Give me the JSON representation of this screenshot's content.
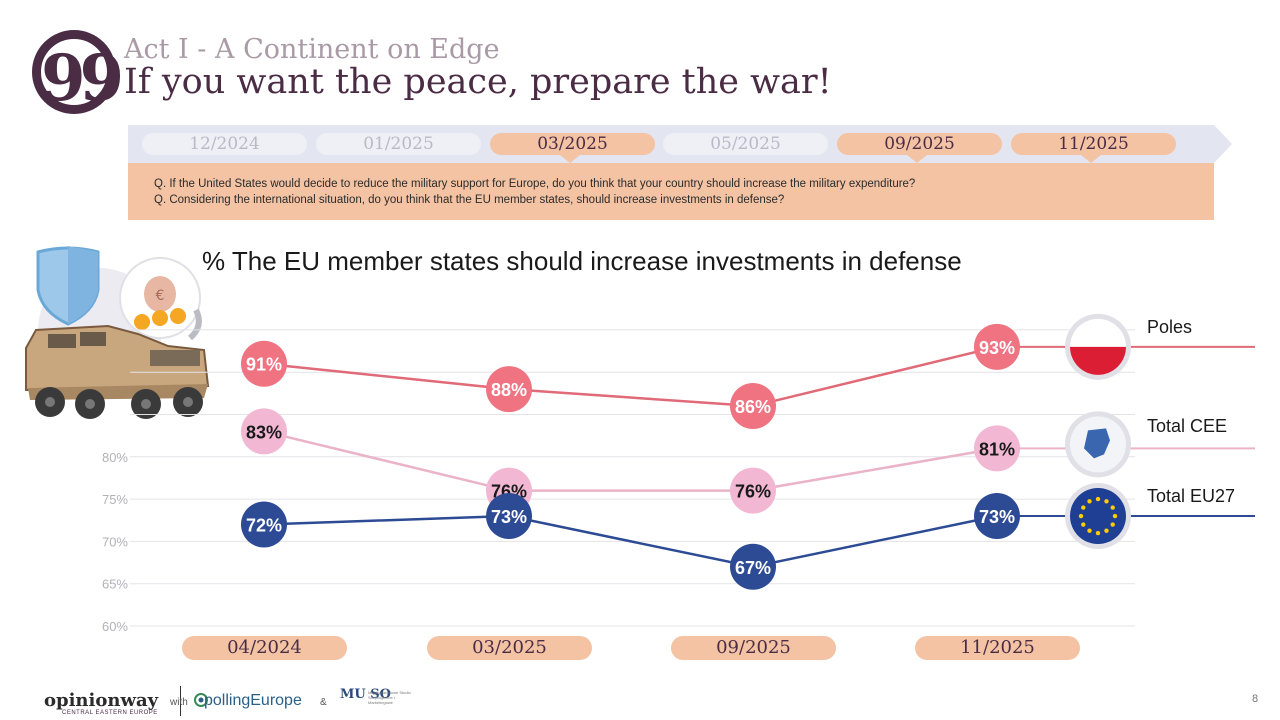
{
  "header": {
    "kicker": "Act I - A Continent on Edge",
    "title": "If you want the peace, prepare the war!",
    "quote_glyph": "99"
  },
  "timeline": {
    "items": [
      {
        "label": "12/2024",
        "active": false
      },
      {
        "label": "01/2025",
        "active": false
      },
      {
        "label": "03/2025",
        "active": true
      },
      {
        "label": "05/2025",
        "active": false
      },
      {
        "label": "09/2025",
        "active": true
      },
      {
        "label": "11/2025",
        "active": true
      }
    ]
  },
  "questions": {
    "q1": "Q. If the United States would decide to reduce the military support for Europe, do you think that your country should increase the military expenditure?",
    "q2": "Q. Considering the international situation, do you think that the EU member states, should increase investments in defense?"
  },
  "chart_data": {
    "type": "line",
    "title": "% The EU member states should increase investments in defense",
    "categories": [
      "04/2024",
      "03/2025",
      "09/2025",
      "11/2025"
    ],
    "ylim": [
      60,
      95
    ],
    "y_ticks": [
      "60%",
      "65%",
      "70%",
      "75%",
      "80%"
    ],
    "grid": true,
    "legend_position": "right",
    "series": [
      {
        "name": "Poles",
        "values": [
          91,
          88,
          86,
          93
        ],
        "labels": [
          "91%",
          "88%",
          "86%",
          "93%"
        ],
        "color": "#f07382",
        "line_color": "#e06a78",
        "label_color": "#ffffff"
      },
      {
        "name": "Total CEE",
        "values": [
          83,
          76,
          76,
          81
        ],
        "labels": [
          "83%",
          "76%",
          "76%",
          "81%"
        ],
        "color": "#f2b8d3",
        "line_color": "#eab3c8",
        "label_color": "#1a1a1a"
      },
      {
        "name": "Total EU27",
        "values": [
          72,
          73,
          67,
          73
        ],
        "labels": [
          "72%",
          "73%",
          "67%",
          "73%"
        ],
        "color": "#2d4b94",
        "line_color": "#2d4b94",
        "label_color": "#ffffff"
      }
    ]
  },
  "footer": {
    "logo": "opinionway",
    "logo_sub": "CENTRAL EASTERN EUROPE",
    "with": "with",
    "partner": "pollingEurope",
    "amp": "&",
    "muso": "MU SO",
    "muso_text": "Międzynarodowe Studio Socjologiczne i Marketingowe",
    "page_number": "8"
  },
  "colors": {
    "brand": "#4a2c45",
    "accent": "#f3c3a4",
    "timeline_bar": "#e3e6f0"
  }
}
